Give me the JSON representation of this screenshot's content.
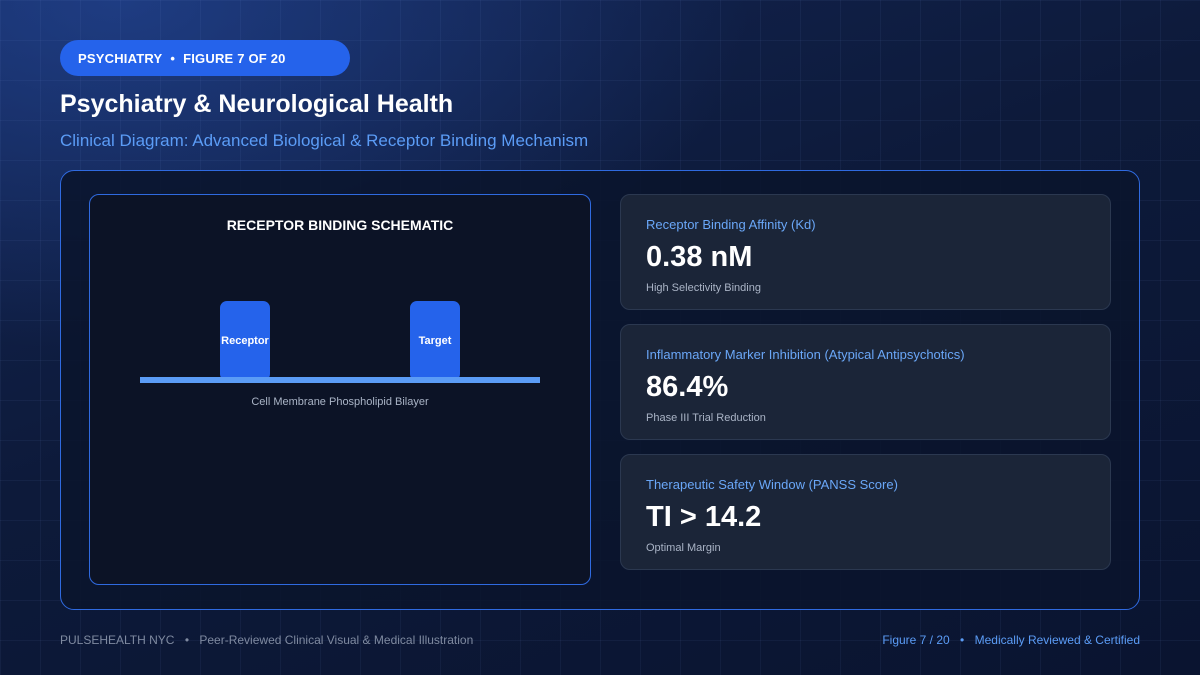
{
  "badge": {
    "section": "PSYCHIATRY",
    "separator": "•",
    "figure": "FIGURE 7 OF 20"
  },
  "title": "Psychiatry & Neurological Health",
  "subtitle": "Clinical Diagram: Advanced Biological & Receptor Binding Mechanism",
  "schematic": {
    "title": "RECEPTOR BINDING SCHEMATIC",
    "receptor_label": "Receptor",
    "target_label": "Target",
    "membrane_label": "Cell Membrane Phospholipid Bilayer"
  },
  "metrics": [
    {
      "label": "Receptor Binding Affinity (Kd)",
      "value": "0.38 nM",
      "note": "High Selectivity Binding"
    },
    {
      "label": "Inflammatory Marker Inhibition (Atypical Antipsychotics)",
      "value": "86.4%",
      "note": "Phase III Trial Reduction"
    },
    {
      "label": "Therapeutic Safety Window (PANSS Score)",
      "value": "TI > 14.2",
      "note": "Optimal Margin"
    }
  ],
  "footer": {
    "brand": "PULSEHEALTH NYC",
    "separator": "•",
    "tagline": "Peer-Reviewed Clinical Visual & Medical Illustration",
    "figure": "Figure 7 / 20",
    "certification": "Medically Reviewed & Certified"
  },
  "colors": {
    "accent": "#2563eb",
    "accent_light": "#5b9cf6",
    "background": "#0c1630",
    "card": "#1b2538"
  }
}
